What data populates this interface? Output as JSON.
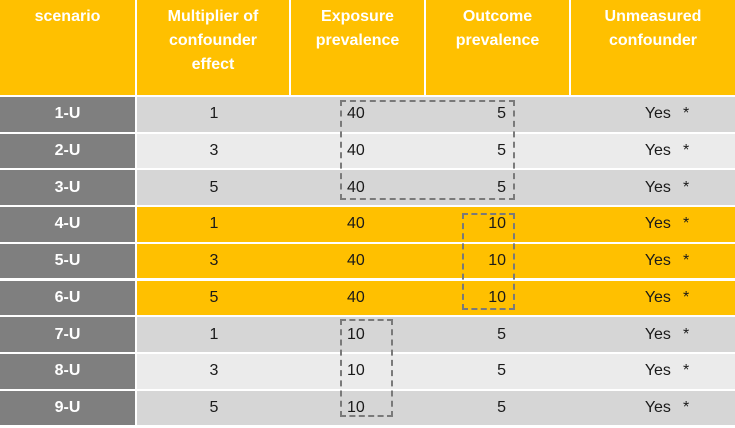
{
  "table": {
    "headers": [
      "scenario",
      "Multiplier of confounder effect",
      "Exposure prevalence",
      "Outcome prevalence",
      "Unmeasured confounder"
    ],
    "rows": [
      {
        "scenario": "1-U",
        "multiplier": "1",
        "exposure": "40",
        "outcome": "5",
        "unmeasured": "Yes",
        "mark": "*"
      },
      {
        "scenario": "2-U",
        "multiplier": "3",
        "exposure": "40",
        "outcome": "5",
        "unmeasured": "Yes",
        "mark": "*"
      },
      {
        "scenario": "3-U",
        "multiplier": "5",
        "exposure": "40",
        "outcome": "5",
        "unmeasured": "Yes",
        "mark": "*"
      },
      {
        "scenario": "4-U",
        "multiplier": "1",
        "exposure": "40",
        "outcome": "10",
        "unmeasured": "Yes",
        "mark": "*"
      },
      {
        "scenario": "5-U",
        "multiplier": "3",
        "exposure": "40",
        "outcome": "10",
        "unmeasured": "Yes",
        "mark": "*"
      },
      {
        "scenario": "6-U",
        "multiplier": "5",
        "exposure": "40",
        "outcome": "10",
        "unmeasured": "Yes",
        "mark": "*"
      },
      {
        "scenario": "7-U",
        "multiplier": "1",
        "exposure": "10",
        "outcome": "5",
        "unmeasured": "Yes",
        "mark": "*"
      },
      {
        "scenario": "8-U",
        "multiplier": "3",
        "exposure": "10",
        "outcome": "5",
        "unmeasured": "Yes",
        "mark": "*"
      },
      {
        "scenario": "9-U",
        "multiplier": "5",
        "exposure": "10",
        "outcome": "5",
        "unmeasured": "Yes",
        "mark": "*"
      }
    ]
  },
  "colors": {
    "header": "#ffc000",
    "row_label": "#7f7f7f",
    "highlight_row": "#ffc000",
    "gray_row_dark": "#d6d6d6",
    "gray_row_light": "#ebebeb"
  }
}
